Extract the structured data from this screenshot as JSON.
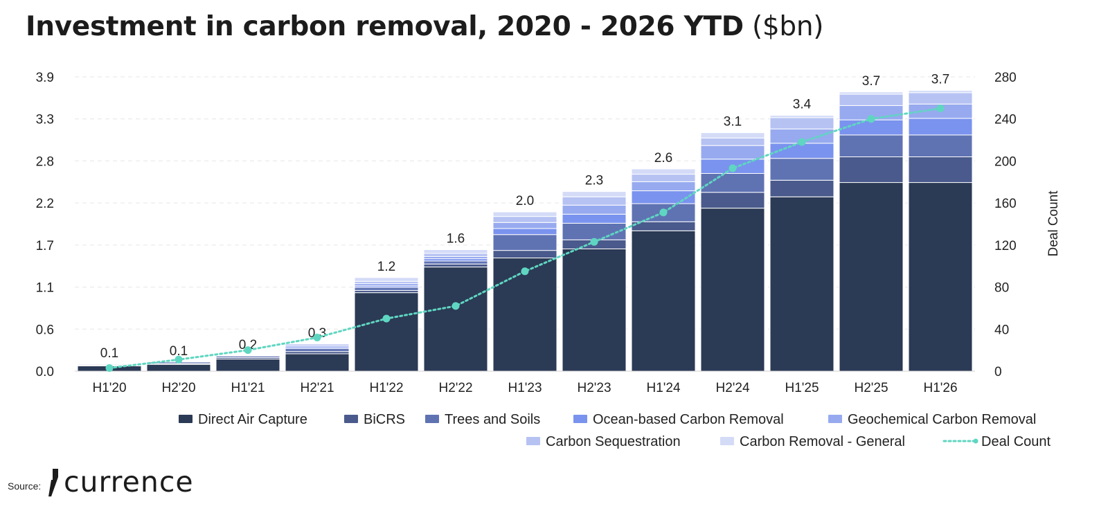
{
  "title": {
    "main": "Investment in carbon removal, 2020 - 2026 YTD",
    "unit": "($bn)"
  },
  "footer": {
    "source_label": "Source:",
    "brand_name": "currence"
  },
  "chart_data": {
    "type": "bar",
    "stacked": true,
    "categories": [
      "H1'20",
      "H2'20",
      "H1'21",
      "H2'21",
      "H1'22",
      "H2'22",
      "H1'23",
      "H2'23",
      "H1'24",
      "H2'24",
      "H1'25",
      "H2'25",
      "H1'26"
    ],
    "totals_labels": [
      "0.1",
      "0.1",
      "0.2",
      "0.3",
      "1.2",
      "1.6",
      "2.0",
      "2.3",
      "2.6",
      "3.1",
      "3.4",
      "3.7",
      "3.7"
    ],
    "y_left": {
      "ticks": [
        "0.0",
        "0.6",
        "1.1",
        "1.7",
        "2.2",
        "2.8",
        "3.3",
        "3.9"
      ],
      "range": [
        0,
        3.9
      ]
    },
    "y_right": {
      "label": "Deal Count",
      "ticks": [
        "0",
        "40",
        "80",
        "120",
        "160",
        "200",
        "240",
        "280"
      ],
      "range": [
        0,
        280
      ]
    },
    "series": [
      {
        "name": "Direct Air Capture",
        "color": "#2b3a55",
        "values": [
          0.07,
          0.09,
          0.16,
          0.23,
          1.04,
          1.38,
          1.5,
          1.62,
          1.86,
          2.16,
          2.31,
          2.5,
          2.5
        ]
      },
      {
        "name": "BiCRS",
        "color": "#4a5a8c",
        "values": [
          0.01,
          0.01,
          0.02,
          0.03,
          0.03,
          0.04,
          0.1,
          0.12,
          0.12,
          0.21,
          0.22,
          0.34,
          0.34
        ]
      },
      {
        "name": "Trees and Soils",
        "color": "#5f73b3",
        "values": [
          0.01,
          0.02,
          0.02,
          0.04,
          0.04,
          0.04,
          0.21,
          0.22,
          0.24,
          0.25,
          0.29,
          0.29,
          0.29
        ]
      },
      {
        "name": "Ocean-based Carbon Removal",
        "color": "#7a93ee",
        "values": [
          0.0,
          0.0,
          0.0,
          0.02,
          0.02,
          0.03,
          0.08,
          0.12,
          0.17,
          0.19,
          0.2,
          0.2,
          0.22
        ]
      },
      {
        "name": "Geochemical Carbon Removal",
        "color": "#97aaef",
        "values": [
          0.0,
          0.0,
          0.0,
          0.02,
          0.03,
          0.03,
          0.08,
          0.12,
          0.12,
          0.18,
          0.19,
          0.19,
          0.19
        ]
      },
      {
        "name": "Carbon Sequestration",
        "color": "#b6c2f2",
        "values": [
          0.0,
          0.0,
          0.0,
          0.02,
          0.03,
          0.04,
          0.08,
          0.11,
          0.1,
          0.1,
          0.15,
          0.15,
          0.15
        ]
      },
      {
        "name": "Carbon Removal - General",
        "color": "#d4dbf7",
        "values": [
          0.0,
          0.0,
          0.0,
          0.0,
          0.05,
          0.05,
          0.06,
          0.07,
          0.07,
          0.07,
          0.03,
          0.03,
          0.03
        ]
      }
    ],
    "line_series": {
      "name": "Deal Count",
      "color": "#5fd6c1",
      "axis": "right",
      "values": [
        3,
        11,
        20,
        32,
        50,
        62,
        95,
        123,
        151,
        193,
        218,
        240,
        250
      ]
    },
    "grid": true,
    "legend_position": "bottom"
  }
}
